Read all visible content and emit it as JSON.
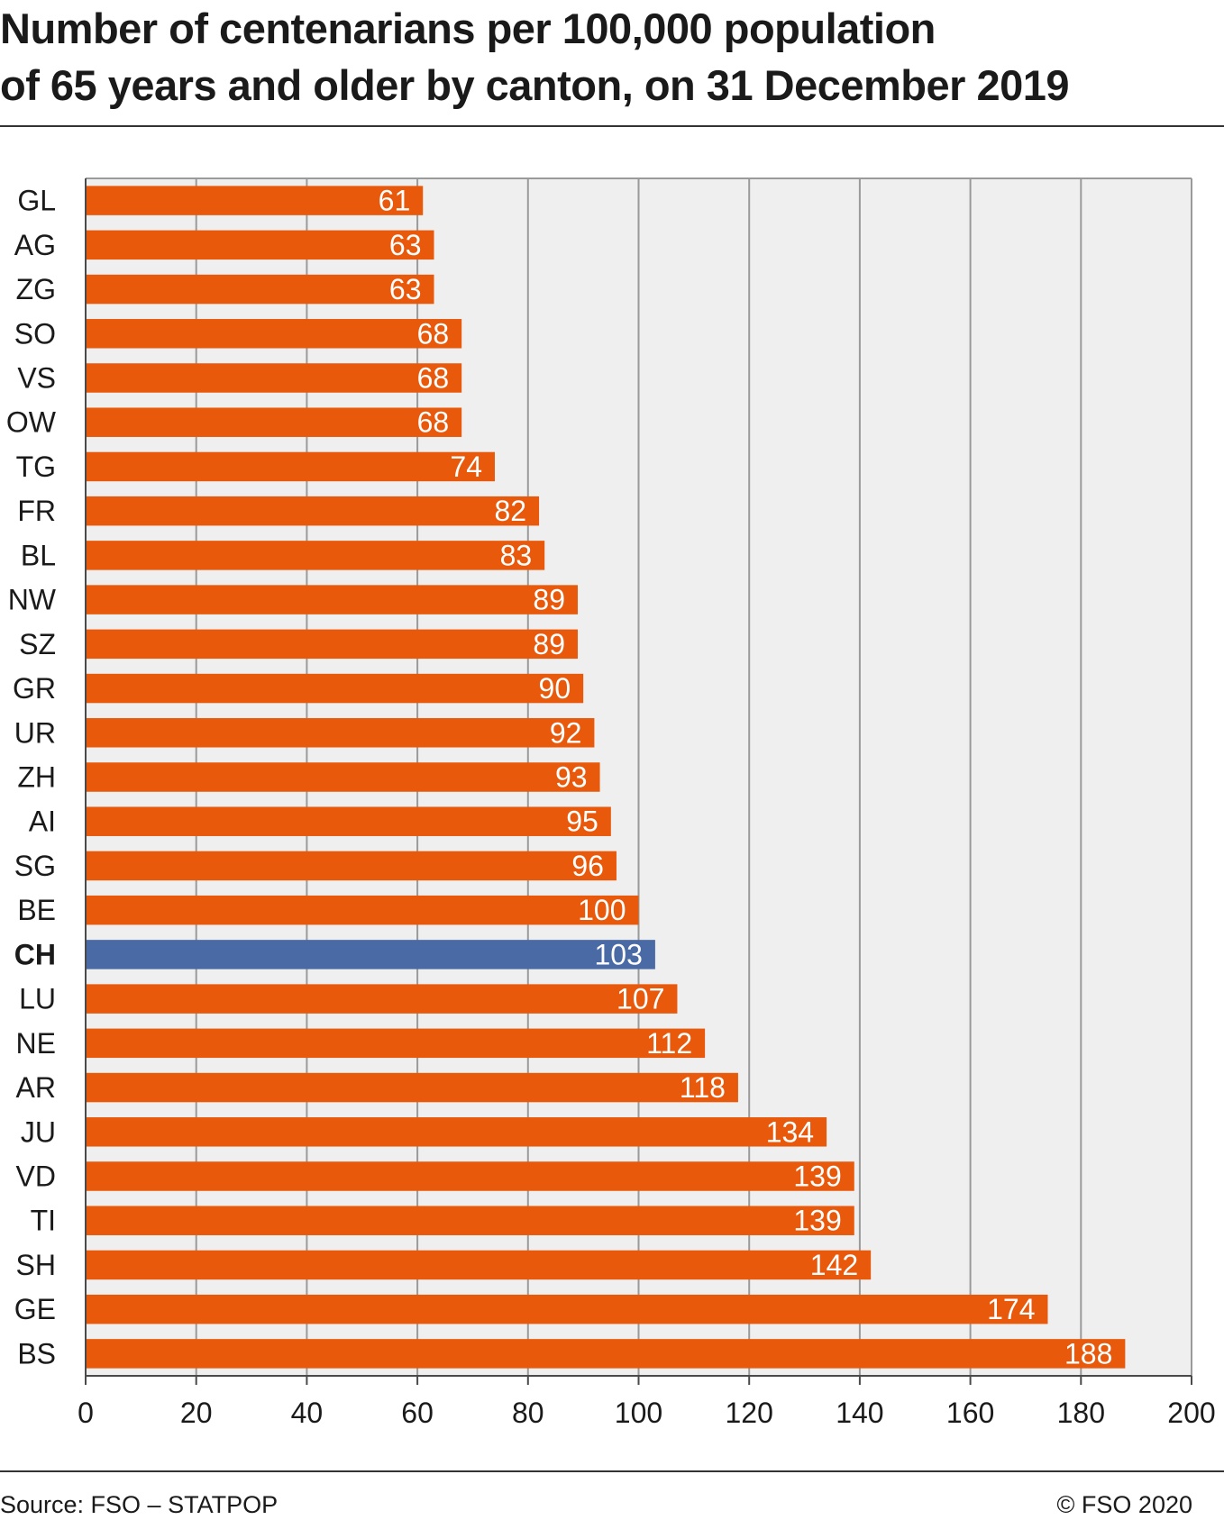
{
  "title_lines": [
    "Number of centenarians per 100,000 population",
    "of 65 years and older by canton, on 31 December 2019"
  ],
  "footer": {
    "source": "Source: FSO – STATPOP",
    "copyright": "© FSO 2020"
  },
  "colors": {
    "bar": "#e8590c",
    "highlight_bar": "#4a6aa5",
    "plot_background": "#efefef",
    "grid": "#9a9a9a"
  },
  "chart_data": {
    "type": "bar",
    "orientation": "horizontal",
    "title": "Number of centenarians per 100,000 population of 65 years and older by canton, on 31 December 2019",
    "categories": [
      "GL",
      "AG",
      "ZG",
      "SO",
      "VS",
      "OW",
      "TG",
      "FR",
      "BL",
      "NW",
      "SZ",
      "GR",
      "UR",
      "ZH",
      "AI",
      "SG",
      "BE",
      "CH",
      "LU",
      "NE",
      "AR",
      "JU",
      "VD",
      "TI",
      "SH",
      "GE",
      "BS"
    ],
    "values": [
      61,
      63,
      63,
      68,
      68,
      68,
      74,
      82,
      83,
      89,
      89,
      90,
      92,
      93,
      95,
      96,
      100,
      103,
      107,
      112,
      118,
      134,
      139,
      139,
      142,
      174,
      188
    ],
    "highlight": [
      "CH"
    ],
    "xlim": [
      0,
      200
    ],
    "xticks": [
      0,
      20,
      40,
      60,
      80,
      100,
      120,
      140,
      160,
      180,
      200
    ],
    "grid": true,
    "data_labels": true,
    "xlabel": "",
    "ylabel": ""
  }
}
